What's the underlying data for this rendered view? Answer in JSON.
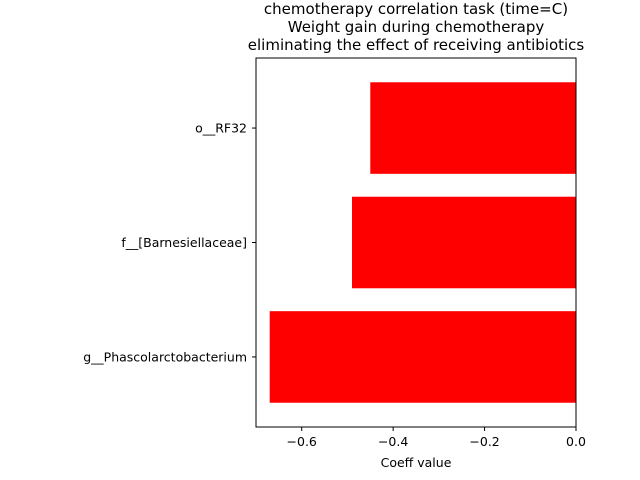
{
  "chart_data": {
    "type": "bar",
    "orientation": "horizontal",
    "title": [
      "chemotherapy correlation task (time=C)",
      "Weight gain during chemotherapy",
      "eliminating the effect of receiving antibiotics"
    ],
    "xlabel": "Coeff value",
    "ylabel": "",
    "xlim": [
      -0.7,
      0.0
    ],
    "xticks": [
      -0.6,
      -0.4,
      -0.2,
      0.0
    ],
    "xtick_labels": [
      "−0.6",
      "−0.4",
      "−0.2",
      "0.0"
    ],
    "categories": [
      "g__Phascolarctobacterium",
      "f__[Barnesiellaceae]",
      "o__RF32"
    ],
    "values": [
      -0.67,
      -0.49,
      -0.45
    ],
    "bar_color": "#ff0000",
    "grid": false,
    "legend": "none"
  }
}
